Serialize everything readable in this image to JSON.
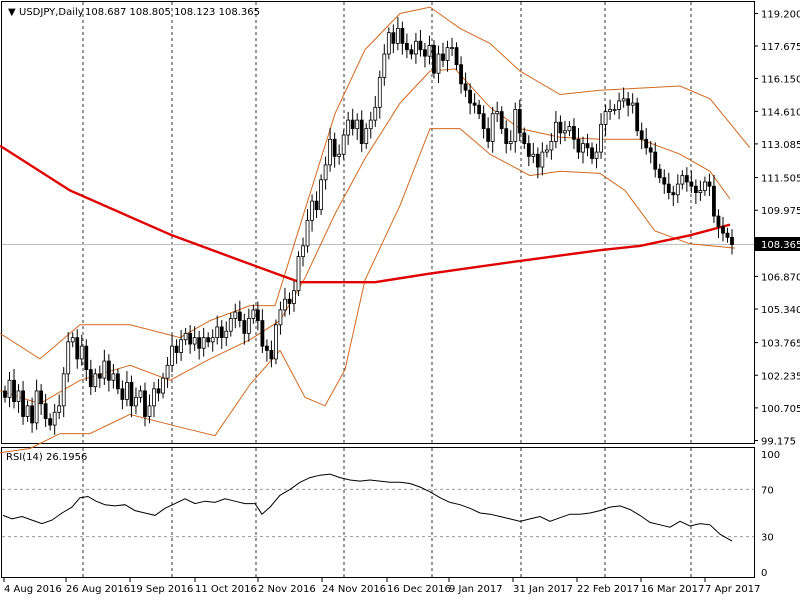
{
  "header": {
    "symbol": "USDJPY,Daily",
    "ohlc": "108.687 108.805 108.123 108.365"
  },
  "rsi_panel": {
    "title": "RSI(14) 26.1956",
    "levels": [
      100,
      70,
      30,
      0
    ]
  },
  "price_axis": {
    "ticks": [
      "119.200",
      "117.675",
      "116.150",
      "114.610",
      "113.085",
      "111.505",
      "109.975",
      "106.870",
      "105.340",
      "103.765",
      "102.235",
      "100.705",
      "99.175"
    ],
    "current_label": "108.365"
  },
  "time_axis": {
    "labels": [
      "4 Aug 2016",
      "26 Aug 2016",
      "19 Sep 2016",
      "11 Oct 2016",
      "2 Nov 2016",
      "24 Nov 2016",
      "16 Dec 2016",
      "9 Jan 2017",
      "31 Jan 2017",
      "22 Feb 2017",
      "16 Mar 2017",
      "7 Apr 2017"
    ]
  },
  "colors": {
    "candle": "#000000",
    "ma200": "#e00000",
    "bollinger": "#d2691e",
    "rsi_line": "#000000",
    "grid": "#000000",
    "current_price_line": "#c0c0c0"
  },
  "chart_data": {
    "type": "candlestick",
    "symbol": "USDJPY",
    "timeframe": "Daily",
    "price_range": [
      99.175,
      119.7
    ],
    "closes": [
      101.2,
      102.0,
      101.0,
      101.5,
      100.3,
      100.8,
      100.0,
      101.5,
      100.9,
      100.2,
      99.9,
      100.5,
      100.8,
      102.3,
      103.8,
      104.0,
      103.0,
      103.6,
      102.5,
      101.7,
      102.3,
      102.1,
      102.9,
      102.0,
      102.3,
      101.6,
      101.1,
      101.9,
      100.8,
      101.2,
      101.5,
      100.3,
      100.8,
      101.6,
      101.4,
      102.1,
      102.7,
      103.6,
      103.3,
      103.9,
      104.2,
      103.7,
      104.0,
      103.5,
      104.0,
      103.8,
      104.0,
      104.5,
      104.0,
      104.3,
      104.9,
      105.2,
      104.8,
      104.2,
      104.9,
      105.3,
      104.8,
      103.6,
      103.4,
      103.0,
      104.6,
      105.3,
      105.8,
      105.6,
      106.2,
      107.8,
      108.3,
      109.5,
      110.4,
      110.0,
      111.4,
      112.1,
      113.3,
      112.5,
      112.6,
      113.5,
      114.2,
      113.8,
      114.2,
      113.1,
      113.8,
      114.2,
      114.8,
      116.2,
      117.3,
      118.3,
      117.8,
      118.5,
      117.8,
      117.5,
      117.3,
      117.9,
      117.5,
      117.2,
      117.7,
      116.4,
      117.3,
      117.0,
      117.6,
      117.6,
      116.8,
      115.9,
      115.6,
      115.0,
      114.9,
      114.5,
      113.8,
      113.2,
      114.5,
      114.6,
      113.8,
      113.1,
      113.2,
      114.7,
      113.6,
      113.1,
      112.5,
      112.6,
      112.0,
      112.7,
      112.8,
      113.2,
      114.1,
      113.6,
      113.7,
      113.9,
      113.3,
      112.7,
      113.1,
      112.9,
      112.4,
      112.7,
      114.0,
      114.6,
      114.7,
      114.7,
      115.1,
      115.2,
      114.9,
      115.0,
      113.7,
      113.3,
      112.9,
      112.7,
      111.9,
      111.5,
      111.2,
      110.8,
      110.7,
      111.2,
      111.6,
      111.3,
      111.1,
      110.8,
      110.9,
      111.3,
      111.1,
      109.7,
      109.2,
      108.9,
      108.7,
      108.365
    ],
    "ma200": [
      [
        0,
        113.0
      ],
      [
        70,
        110.9
      ],
      [
        172,
        108.8
      ],
      [
        282,
        106.9
      ],
      [
        300,
        106.6
      ],
      [
        375,
        106.6
      ],
      [
        430,
        107.0
      ],
      [
        520,
        107.6
      ],
      [
        600,
        108.1
      ],
      [
        640,
        108.3
      ],
      [
        690,
        108.8
      ],
      [
        730,
        109.3
      ]
    ],
    "bollinger_upper": [
      [
        0,
        104.2
      ],
      [
        40,
        103.0
      ],
      [
        80,
        104.6
      ],
      [
        130,
        104.6
      ],
      [
        180,
        104.0
      ],
      [
        210,
        104.8
      ],
      [
        250,
        105.5
      ],
      [
        275,
        105.5
      ],
      [
        305,
        110.0
      ],
      [
        335,
        114.5
      ],
      [
        365,
        117.5
      ],
      [
        400,
        119.2
      ],
      [
        430,
        119.5
      ],
      [
        460,
        118.5
      ],
      [
        490,
        117.8
      ],
      [
        520,
        116.5
      ],
      [
        560,
        115.4
      ],
      [
        600,
        115.6
      ],
      [
        640,
        115.7
      ],
      [
        680,
        115.8
      ],
      [
        710,
        115.2
      ],
      [
        750,
        112.9
      ]
    ],
    "bollinger_middle": [
      [
        0,
        101.5
      ],
      [
        40,
        100.9
      ],
      [
        80,
        102.0
      ],
      [
        130,
        102.7
      ],
      [
        170,
        102.0
      ],
      [
        210,
        103.0
      ],
      [
        250,
        103.9
      ],
      [
        280,
        104.8
      ],
      [
        305,
        106.8
      ],
      [
        335,
        109.8
      ],
      [
        365,
        112.4
      ],
      [
        400,
        115.0
      ],
      [
        430,
        116.5
      ],
      [
        455,
        116.6
      ],
      [
        490,
        114.8
      ],
      [
        520,
        113.8
      ],
      [
        560,
        113.4
      ],
      [
        600,
        113.3
      ],
      [
        640,
        113.3
      ],
      [
        680,
        112.6
      ],
      [
        710,
        111.8
      ],
      [
        730,
        110.5
      ]
    ],
    "bollinger_lower": [
      [
        0,
        98.6
      ],
      [
        30,
        98.8
      ],
      [
        60,
        99.5
      ],
      [
        90,
        99.5
      ],
      [
        130,
        100.4
      ],
      [
        180,
        99.8
      ],
      [
        215,
        99.4
      ],
      [
        250,
        101.8
      ],
      [
        280,
        103.4
      ],
      [
        305,
        101.2
      ],
      [
        325,
        100.8
      ],
      [
        345,
        102.5
      ],
      [
        365,
        106.7
      ],
      [
        400,
        110.2
      ],
      [
        430,
        113.8
      ],
      [
        460,
        113.8
      ],
      [
        490,
        112.6
      ],
      [
        530,
        111.6
      ],
      [
        560,
        111.8
      ],
      [
        600,
        111.7
      ],
      [
        625,
        110.9
      ],
      [
        655,
        109.0
      ],
      [
        690,
        108.4
      ],
      [
        735,
        108.2
      ]
    ],
    "rsi": [
      [
        3,
        48
      ],
      [
        12,
        45
      ],
      [
        22,
        47
      ],
      [
        32,
        44
      ],
      [
        42,
        41
      ],
      [
        52,
        44
      ],
      [
        62,
        50
      ],
      [
        72,
        55
      ],
      [
        80,
        63
      ],
      [
        88,
        64
      ],
      [
        96,
        60
      ],
      [
        105,
        57
      ],
      [
        115,
        56
      ],
      [
        125,
        57
      ],
      [
        135,
        52
      ],
      [
        145,
        50
      ],
      [
        155,
        48
      ],
      [
        165,
        54
      ],
      [
        175,
        58
      ],
      [
        185,
        62
      ],
      [
        195,
        58
      ],
      [
        205,
        60
      ],
      [
        215,
        59
      ],
      [
        225,
        62
      ],
      [
        235,
        60
      ],
      [
        245,
        58
      ],
      [
        255,
        58
      ],
      [
        262,
        49
      ],
      [
        270,
        55
      ],
      [
        280,
        65
      ],
      [
        290,
        70
      ],
      [
        300,
        76
      ],
      [
        310,
        80
      ],
      [
        320,
        82
      ],
      [
        330,
        83
      ],
      [
        340,
        80
      ],
      [
        350,
        78
      ],
      [
        360,
        77
      ],
      [
        370,
        78
      ],
      [
        380,
        77
      ],
      [
        390,
        76
      ],
      [
        400,
        76
      ],
      [
        410,
        75
      ],
      [
        420,
        72
      ],
      [
        430,
        68
      ],
      [
        440,
        63
      ],
      [
        450,
        59
      ],
      [
        460,
        57
      ],
      [
        470,
        54
      ],
      [
        480,
        50
      ],
      [
        490,
        49
      ],
      [
        500,
        47
      ],
      [
        510,
        45
      ],
      [
        520,
        43
      ],
      [
        530,
        45
      ],
      [
        540,
        47
      ],
      [
        550,
        43
      ],
      [
        560,
        46
      ],
      [
        570,
        49
      ],
      [
        580,
        49
      ],
      [
        590,
        50
      ],
      [
        600,
        52
      ],
      [
        610,
        55
      ],
      [
        620,
        56
      ],
      [
        630,
        53
      ],
      [
        640,
        48
      ],
      [
        650,
        42
      ],
      [
        660,
        40
      ],
      [
        670,
        38
      ],
      [
        680,
        43
      ],
      [
        690,
        39
      ],
      [
        700,
        41
      ],
      [
        710,
        40
      ],
      [
        720,
        32
      ],
      [
        732,
        26.2
      ]
    ]
  }
}
